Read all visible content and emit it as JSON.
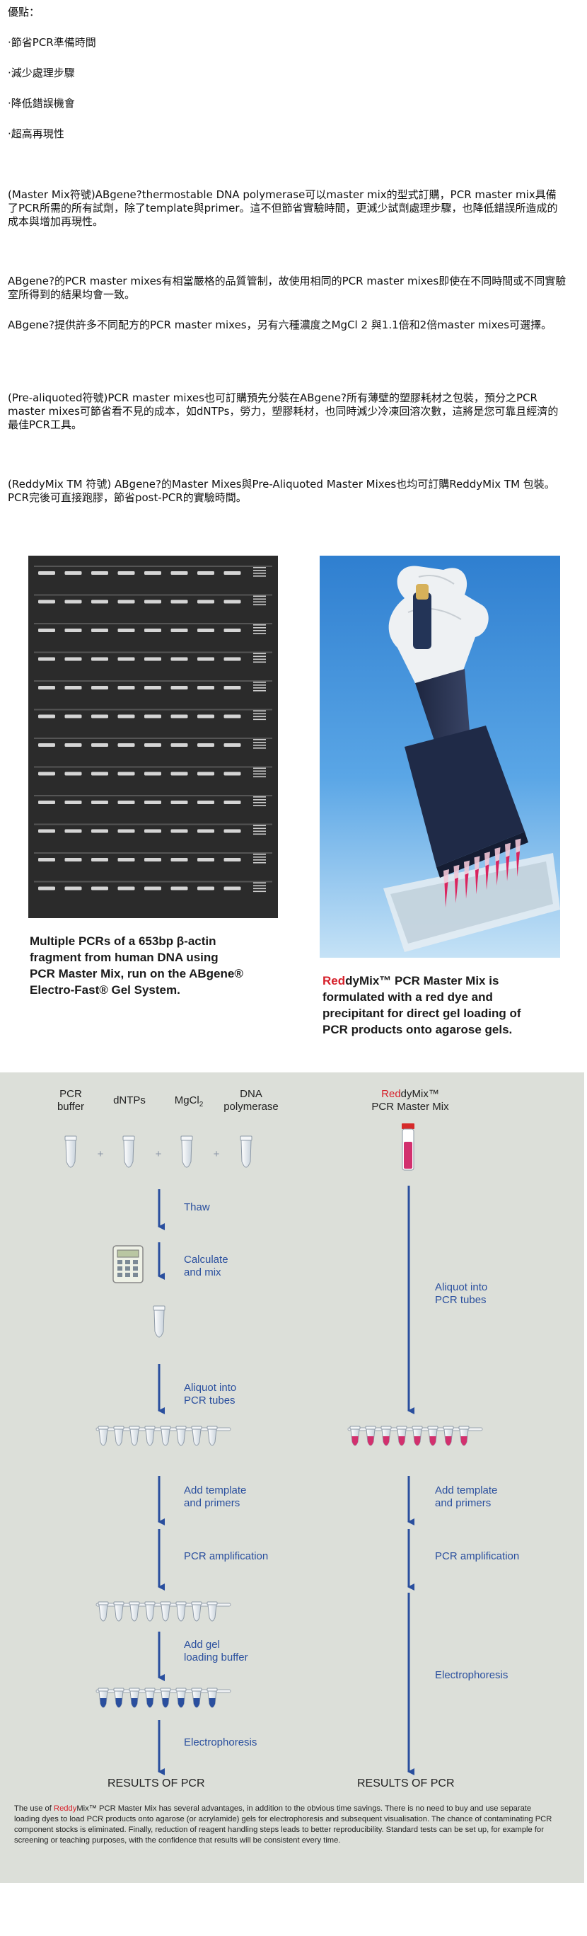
{
  "advantages": {
    "heading": "優點：",
    "items": [
      "‧節省PCR準備時間",
      "‧減少處理步驟",
      "‧降低錯誤機會",
      "‧超高再現性"
    ]
  },
  "paragraphs": {
    "p1": "(Master Mix符號)ABgene?thermostable DNA polymerase可以master mix的型式訂購，PCR master mix具備了PCR所需的所有試劑，除了template與primer。這不但節省實驗時間，更減少試劑處理步驟，也降低錯誤所造成的成本與增加再現性。",
    "p2": "ABgene?的PCR master mixes有相當嚴格的品質管制，故使用相同的PCR master mixes即使在不同時間或不同實驗室所得到的結果均會一致。",
    "p3": "ABgene?提供許多不同配方的PCR master mixes，另有六種濃度之MgCl 2 與1.1倍和2倍master mixes可選擇。",
    "p4": "(Pre-aliquoted符號)PCR master mixes也可訂購預先分裝在ABgene?所有薄壁的塑膠耗材之包裝，預分之PCR master mixes可節省看不見的成本，如dNTPs，勞力，塑膠耗材，也同時減少冷凍回溶次數，這將是您可靠且經濟的最佳PCR工具。",
    "p5": "(ReddyMix TM 符號) ABgene?的Master Mixes與Pre-Aliquoted Master Mixes也均可訂購ReddyMix TM 包裝。PCR完後可直接跑膠，節省post-PCR的實驗時間。"
  },
  "gel_caption": {
    "line1": "Multiple PCRs of a 653bp β-actin",
    "line2": "fragment from human DNA using",
    "line3": "PCR Master Mix, run on the ABgene®",
    "line4": "Electro-Fast® Gel System."
  },
  "photo_caption": {
    "brand_red": "Red",
    "brand_rest": "dyMix™ PCR Master Mix is",
    "line2": "formulated with a red dye and",
    "line3": "precipitant for direct gel loading of",
    "line4": "PCR products onto agarose gels."
  },
  "flow": {
    "left_headers": {
      "h1a": "PCR",
      "h1b": "buffer",
      "h2": "dNTPs",
      "h3a": "MgCl",
      "h3sub": "2",
      "h4a": "DNA",
      "h4b": "polymerase"
    },
    "right_header": {
      "red": "Red",
      "rest": "dyMix™",
      "line2": "PCR Master Mix"
    },
    "plus": "+",
    "left_steps": {
      "thaw": "Thaw",
      "calc1": "Calculate",
      "calc2": "and mix",
      "aliquot1": "Aliquot into",
      "aliquot2": "PCR tubes",
      "add1": "Add template",
      "add2": "and primers",
      "amp": "PCR amplification",
      "gel1": "Add gel",
      "gel2": "loading buffer",
      "electro": "Electrophoresis"
    },
    "right_steps": {
      "aliquot1": "Aliquot into",
      "aliquot2": "PCR tubes",
      "add1": "Add template",
      "add2": "and primers",
      "amp": "PCR amplification",
      "electro": "Electrophoresis"
    },
    "results_left": "RESULTS OF PCR",
    "results_right": "RESULTS OF PCR",
    "footnote": {
      "pre": "The use of ",
      "red": "Reddy",
      "mid": "Mix",
      "rest": "™ PCR Master Mix has several advantages, in addition to the obvious time savings. There is no need to buy and use separate loading dyes to load PCR products onto agarose (or acrylamide) gels for electrophoresis and subsequent visualisation. The chance of contaminating PCR component stocks is eliminated. Finally, reduction of reagent handling steps leads to better reproducibility. Standard tests can be set up, for example for screening or teaching purposes, with the confidence that results will be consistent every time."
    }
  },
  "colors": {
    "flow_blue": "#2a4f9e",
    "reddy_red": "#d6202a",
    "flow_bg": "#dcdfd9",
    "magenta_tube": "#d2306e"
  }
}
